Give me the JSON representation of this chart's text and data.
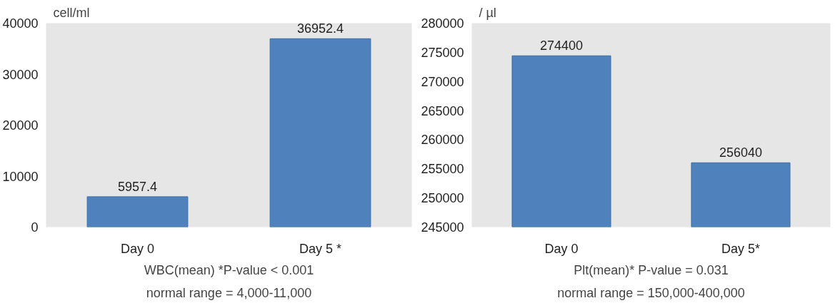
{
  "chart_data": [
    {
      "type": "bar",
      "ylabel": "cell/ml",
      "categories": [
        "Day 0",
        "Day 5 *"
      ],
      "values": [
        5957.4,
        36952.4
      ],
      "color": "#4f81bd",
      "ylim": [
        0,
        40000
      ],
      "yticks": [
        0,
        10000,
        20000,
        30000,
        40000
      ],
      "data_labels": true,
      "annotations": [
        "WBC(mean) *P-value < 0.001",
        "normal range = 4,000-11,000"
      ]
    },
    {
      "type": "bar",
      "ylabel": "/ µl",
      "categories": [
        "Day 0",
        "Day 5*"
      ],
      "values": [
        274400,
        256040
      ],
      "color": "#4f81bd",
      "ylim": [
        245000,
        280000
      ],
      "yticks": [
        245000,
        250000,
        255000,
        260000,
        265000,
        270000,
        275000,
        280000
      ],
      "data_labels": true,
      "annotations": [
        "Plt(mean)* P-value = 0.031",
        "normal range = 150,000-400,000"
      ]
    }
  ]
}
